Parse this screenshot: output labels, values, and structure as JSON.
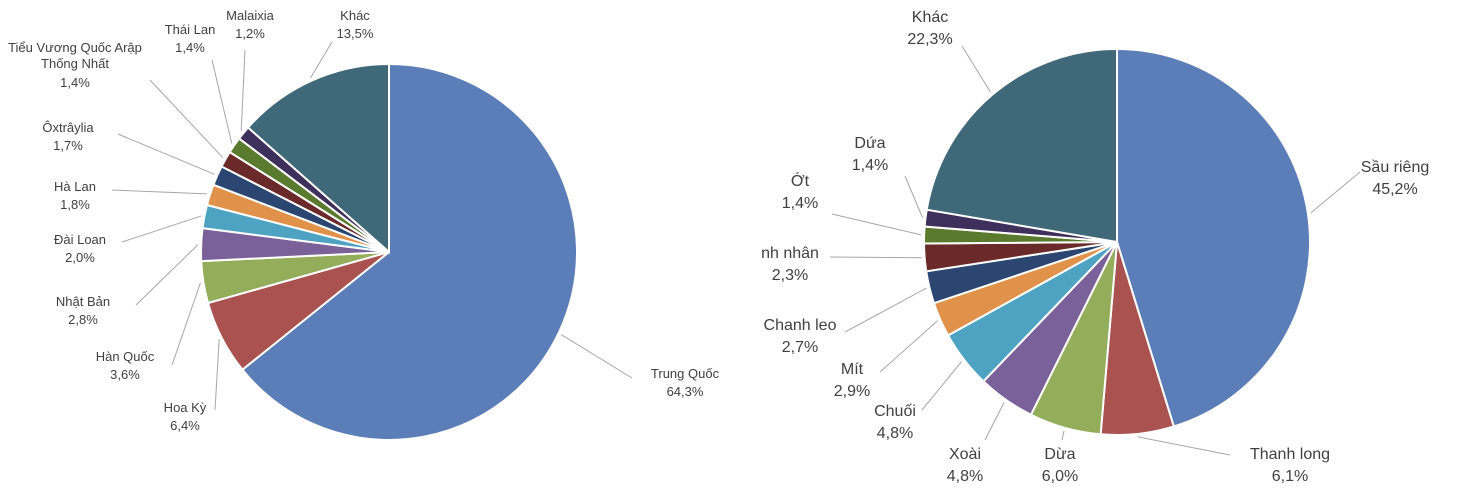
{
  "chart_data": [
    {
      "type": "pie",
      "categories": [
        "Trung Quốc",
        "Hoa Kỳ",
        "Hàn Quốc",
        "Nhật Bản",
        "Đài Loan",
        "Hà Lan",
        "Ôxtrâylia",
        "Tiểu Vương Quốc Arập Thống Nhất",
        "Thái Lan",
        "Malaixia",
        "Khác"
      ],
      "values": [
        64.3,
        6.4,
        3.6,
        2.8,
        2.0,
        1.8,
        1.7,
        1.4,
        1.4,
        1.2,
        13.5
      ],
      "value_labels": [
        "64,3%",
        "6,4%",
        "3,6%",
        "2,8%",
        "2,0%",
        "1,8%",
        "1,7%",
        "1,4%",
        "1,4%",
        "1,2%",
        "13,5%"
      ],
      "colors": [
        "#5b7db8",
        "#a9524f",
        "#93ad5a",
        "#7a619a",
        "#4fa3c2",
        "#e0914a",
        "#2b4670",
        "#6b2a2a",
        "#5a7a2e",
        "#3e2f5b",
        "#3f6879"
      ]
    },
    {
      "type": "pie",
      "categories": [
        "Sầu riêng",
        "Thanh long",
        "Dừa",
        "Xoài",
        "Chuối",
        "Mít",
        "Chanh leo",
        "nh nhân",
        "Ớt",
        "Dứa",
        "Khác"
      ],
      "values": [
        45.2,
        6.1,
        6.0,
        4.8,
        4.8,
        2.9,
        2.7,
        2.3,
        1.4,
        1.4,
        22.3
      ],
      "value_labels": [
        "45,2%",
        "6,1%",
        "6,0%",
        "4,8%",
        "4,8%",
        "2,9%",
        "2,7%",
        "2,3%",
        "1,4%",
        "1,4%",
        "22,3%"
      ],
      "colors": [
        "#5b7db8",
        "#a9524f",
        "#93ad5a",
        "#7a619a",
        "#4fa3c2",
        "#e0914a",
        "#2b4670",
        "#6b2a2a",
        "#5a7a2e",
        "#3e2f5b",
        "#3f6879"
      ]
    }
  ]
}
